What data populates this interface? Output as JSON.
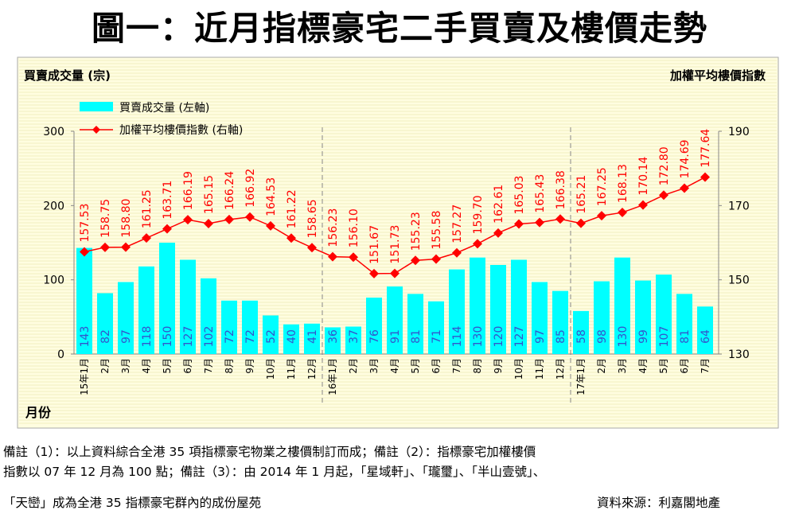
{
  "title": "圖一：近月指標豪宅二手買賣及樓價走勢",
  "chart_data": {
    "type": "bar+line",
    "ylabel_left": "買賣成交量 (宗)",
    "ylabel_right": "加權平均樓價指數",
    "xlabel": "月份",
    "ylim_left": [
      0,
      300
    ],
    "yticks_left": [
      "0",
      "100",
      "200",
      "300"
    ],
    "ylim_right": [
      130,
      190
    ],
    "yticks_right": [
      "130",
      "150",
      "170",
      "190"
    ],
    "legend": [
      "買賣成交量 (左軸)",
      "加權平均樓價指數 (右軸)"
    ],
    "legend_position": "top-left",
    "categories": [
      "15年1月",
      "2月",
      "3月",
      "4月",
      "5月",
      "6月",
      "7月",
      "8月",
      "9月",
      "10月",
      "11月",
      "12月",
      "16年1月",
      "2月",
      "3月",
      "4月",
      "5月",
      "6月",
      "7月",
      "8月",
      "9月",
      "10月",
      "11月",
      "12月",
      "17年1月",
      "2月",
      "3月",
      "4月",
      "5月",
      "6月",
      "7月"
    ],
    "series": [
      {
        "name": "買賣成交量 (左軸)",
        "type": "bar",
        "color": "#00ffff",
        "values": [
          143,
          82,
          97,
          118,
          150,
          127,
          102,
          72,
          72,
          52,
          40,
          41,
          36,
          37,
          76,
          91,
          81,
          71,
          114,
          130,
          120,
          127,
          97,
          85,
          58,
          98,
          130,
          99,
          107,
          81,
          64
        ]
      },
      {
        "name": "加權平均樓價指數 (右軸)",
        "type": "line",
        "color": "#ff0000",
        "values": [
          157.53,
          158.75,
          158.8,
          161.25,
          163.71,
          166.19,
          165.15,
          166.24,
          166.92,
          164.53,
          161.22,
          158.65,
          156.23,
          156.1,
          151.67,
          151.73,
          155.23,
          155.58,
          157.27,
          159.7,
          162.61,
          165.03,
          165.43,
          166.38,
          165.21,
          167.25,
          168.13,
          170.14,
          172.8,
          174.69,
          177.64
        ]
      }
    ],
    "year_separators_after_index": [
      11,
      23
    ]
  },
  "notes": [
    "備註（1）：以上資料綜合全港 35 項指標豪宅物業之樓價制訂而成；備註（2）：指標豪宅加權樓價",
    "指數以 07 年 12 月為 100 點；備註（3）：由 2014 年 1 月起，「星域軒」、「瓏璽」、「半山壹號」、",
    "「天巒」成為全港 35 指標豪宅群內的成份屋苑"
  ],
  "source": "資料來源：利嘉閣地產"
}
